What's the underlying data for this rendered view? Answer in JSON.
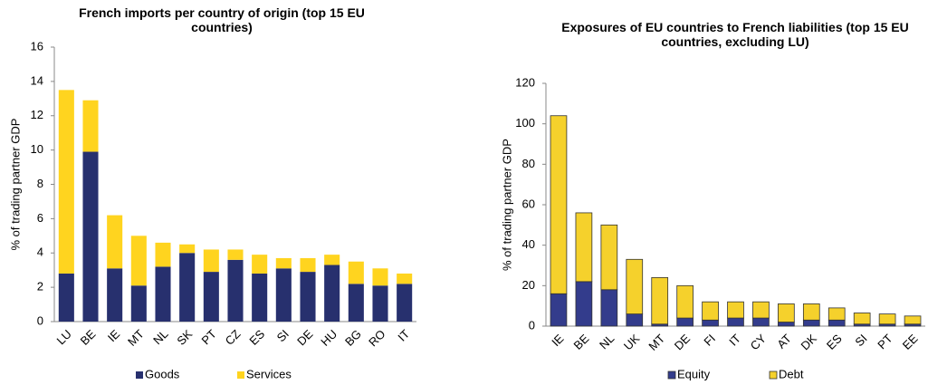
{
  "chart_data": [
    {
      "type": "bar",
      "stacked": true,
      "title": "French imports per country of origin (top 15 EU countries)",
      "y_label": "% of trading partner GDP",
      "categories": [
        "LU",
        "BE",
        "IE",
        "MT",
        "NL",
        "SK",
        "PT",
        "CZ",
        "ES",
        "SI",
        "DE",
        "HU",
        "BG",
        "RO",
        "IT"
      ],
      "series": [
        {
          "name": "Goods",
          "color": "#27306e",
          "values": [
            2.8,
            9.9,
            3.1,
            2.1,
            3.2,
            4.0,
            2.9,
            3.6,
            2.8,
            3.1,
            2.9,
            3.3,
            2.2,
            2.1,
            2.2
          ]
        },
        {
          "name": "Services",
          "color": "#ffd41f",
          "values": [
            10.7,
            3.0,
            3.1,
            2.9,
            1.4,
            0.5,
            1.3,
            0.6,
            1.1,
            0.6,
            0.8,
            0.6,
            1.3,
            1.0,
            0.6
          ]
        }
      ],
      "ylim": [
        0,
        16
      ],
      "yticks": [
        0,
        2,
        4,
        6,
        8,
        10,
        12,
        14,
        16
      ],
      "grid": false,
      "legend": "bottom"
    },
    {
      "type": "bar",
      "stacked": true,
      "title": "Exposures of EU countries to French liabilities (top 15 EU countries,  excluding LU)",
      "y_label": "% of trading partner GDP",
      "categories": [
        "IE",
        "BE",
        "NL",
        "UK",
        "MT",
        "DE",
        "FI",
        "IT",
        "CY",
        "AT",
        "DK",
        "ES",
        "SI",
        "PT",
        "EE"
      ],
      "series": [
        {
          "name": "Equity",
          "color": "#333c8c",
          "values": [
            16,
            22,
            18,
            6,
            1,
            4,
            3,
            4,
            4,
            2,
            3,
            3,
            1,
            1,
            1
          ]
        },
        {
          "name": "Debt",
          "color": "#f5d12c",
          "values": [
            88,
            34,
            32,
            27,
            23,
            16,
            9,
            8,
            8,
            9,
            8,
            6,
            5.5,
            5,
            4
          ]
        }
      ],
      "ylim": [
        0,
        120
      ],
      "yticks": [
        0,
        20,
        40,
        60,
        80,
        100,
        120
      ],
      "grid": false,
      "legend": "bottom"
    }
  ]
}
